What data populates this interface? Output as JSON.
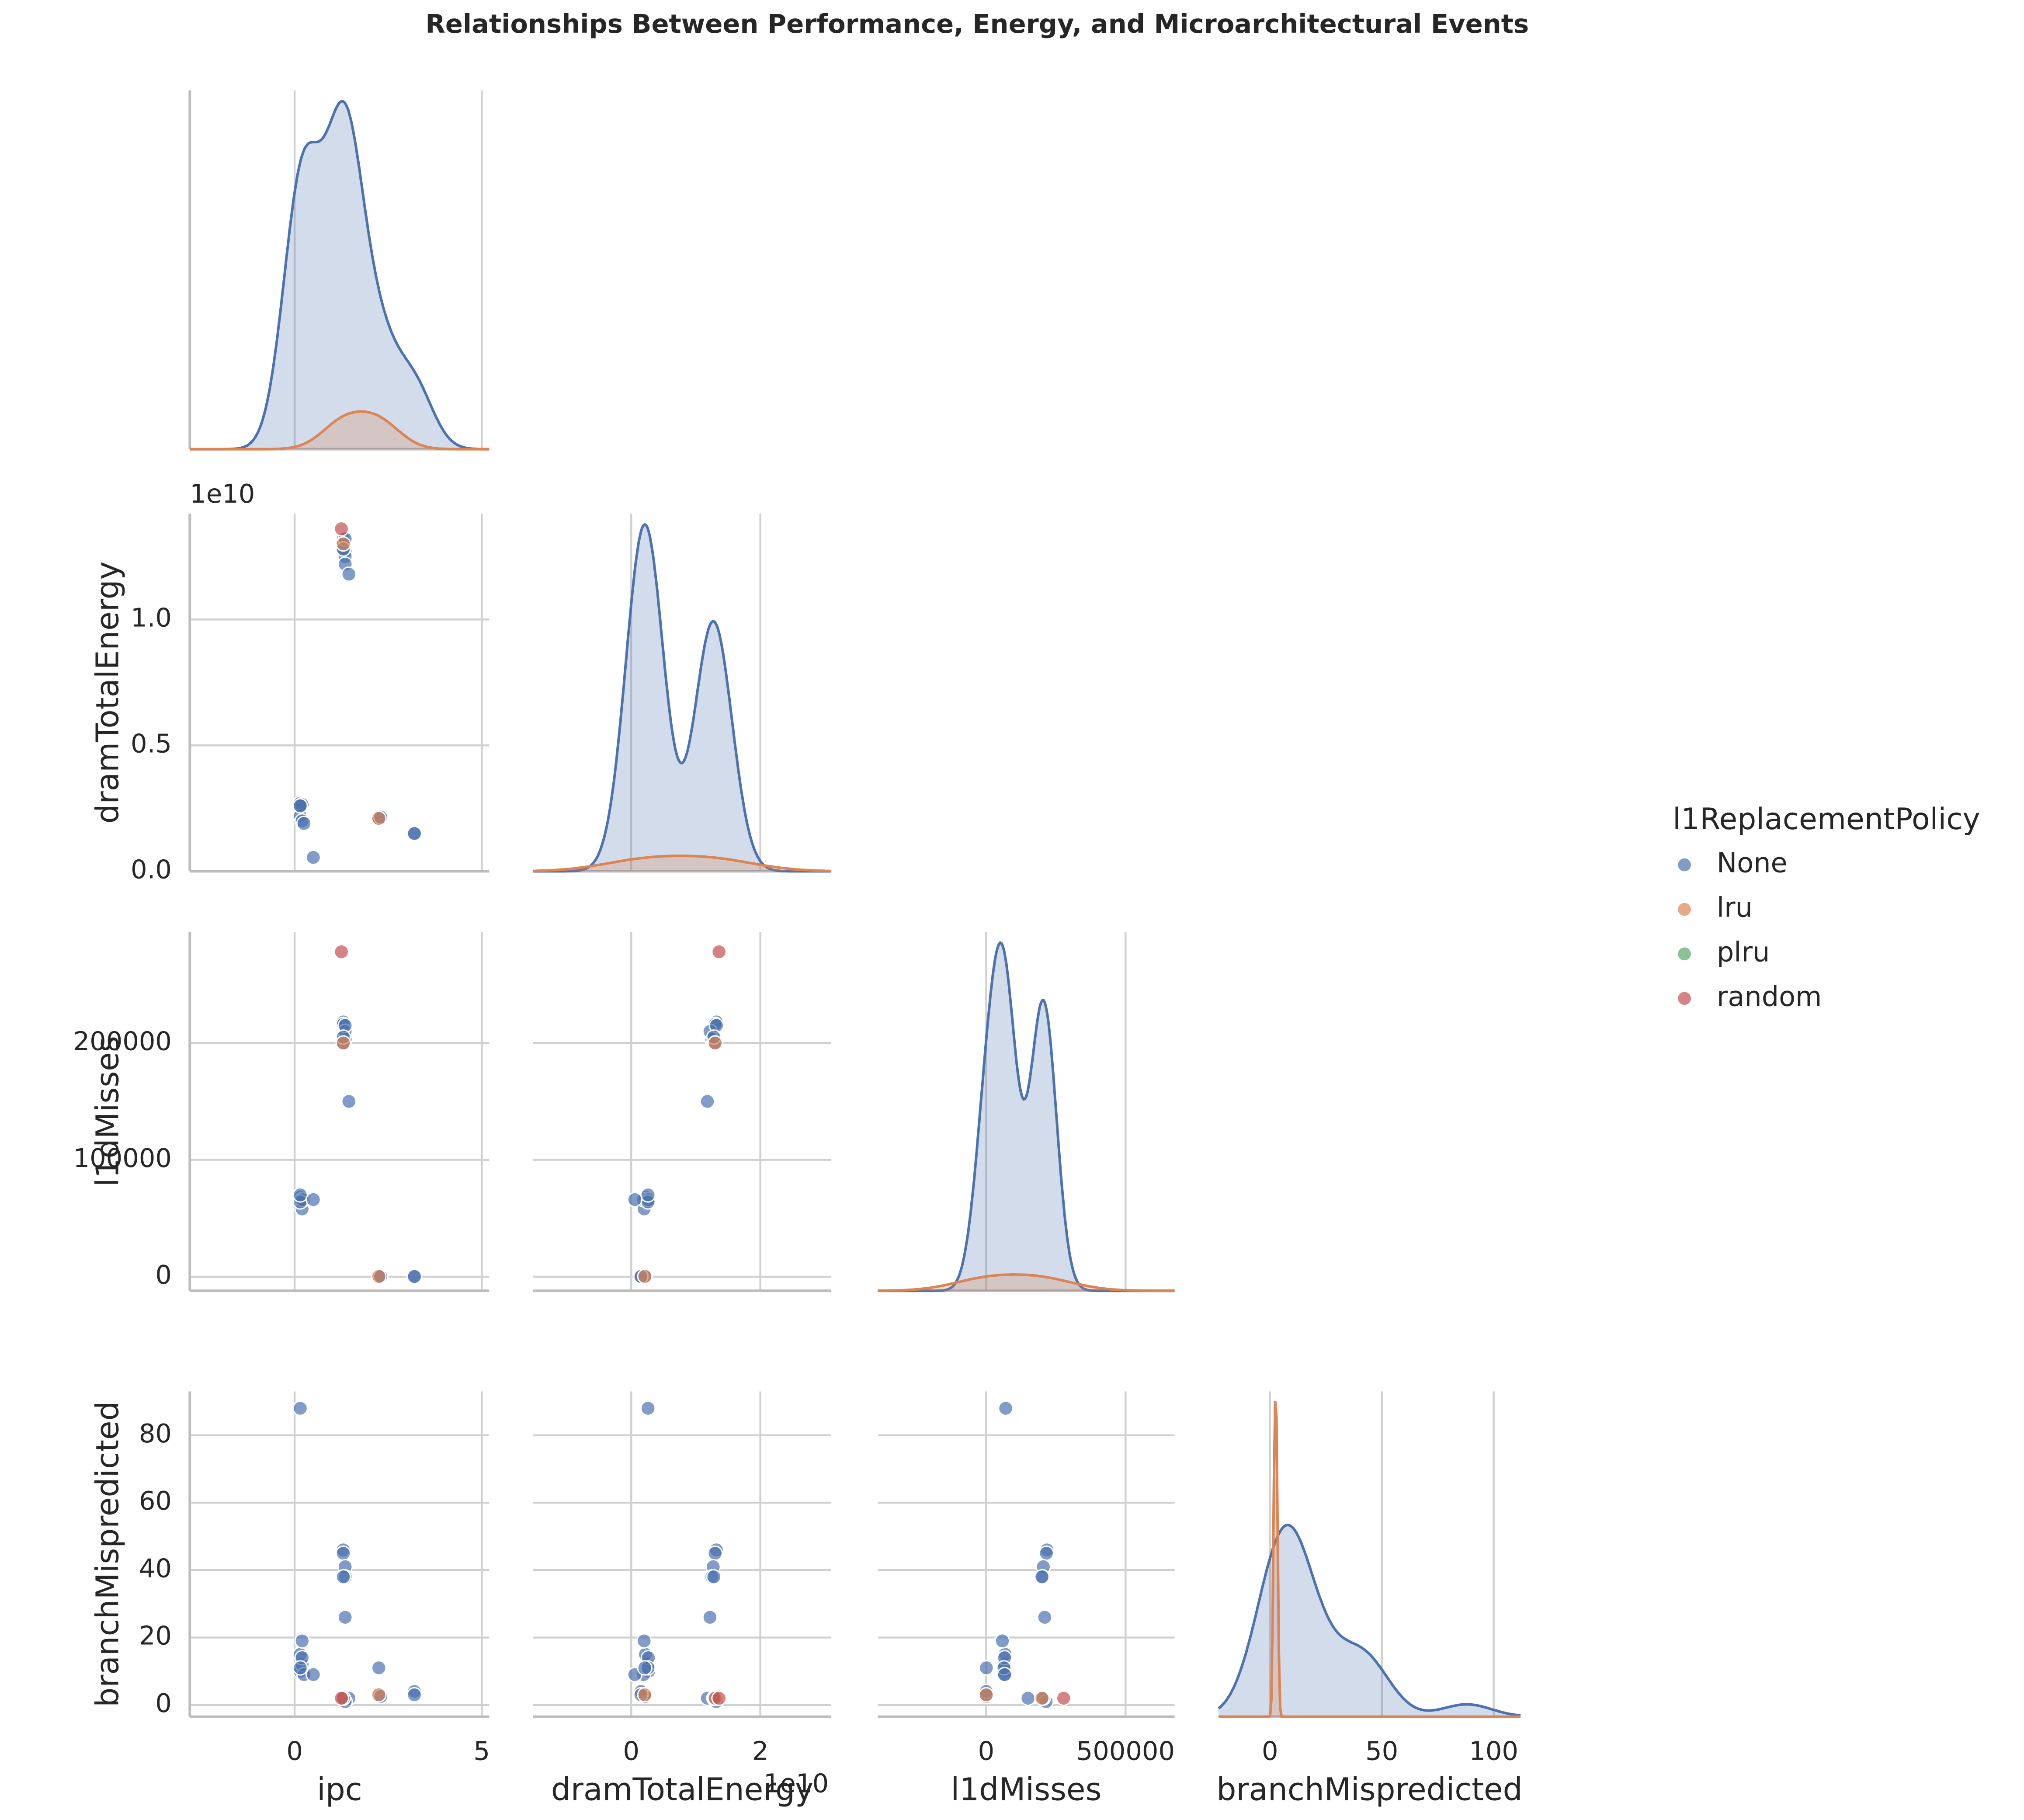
{
  "chart_data": {
    "type": "pairplot",
    "title": "Relationships Between Performance, Energy, and Microarchitectural Events",
    "legend_title": "l1ReplacementPolicy",
    "grid": true,
    "variables": [
      {
        "name": "ipc",
        "xlim": [
          -2.8,
          5.2
        ],
        "xticks": [
          0,
          5
        ]
      },
      {
        "name": "dramTotalEnergy",
        "offset_label": "1e10",
        "xlim": [
          -15200000000,
          31000000000
        ],
        "xticks": [
          0,
          {
            "value": 20000000000,
            "label": "2"
          }
        ],
        "ylim": [
          0,
          14200000000
        ],
        "yticks": [
          {
            "value": 0,
            "label": "0.0"
          },
          {
            "value": 5000000000,
            "label": "0.5"
          },
          {
            "value": 10000000000,
            "label": "1.0"
          }
        ]
      },
      {
        "name": "l1dMisses",
        "xlim": [
          -389000,
          676000
        ],
        "xticks": [
          0,
          500000
        ],
        "ylim": [
          -12000,
          295000
        ],
        "yticks": [
          0,
          100000,
          200000
        ]
      },
      {
        "name": "branchMispredicted",
        "xlim": [
          -23,
          112
        ],
        "xticks": [
          0,
          50,
          100
        ],
        "ylim": [
          -3.5,
          93
        ],
        "yticks": [
          0,
          20,
          40,
          60,
          80
        ]
      }
    ],
    "series": [
      {
        "name": "None",
        "color": "#4c72b0",
        "points": [
          [
            0.15,
            2700000000,
            66000,
            10
          ],
          [
            0.2,
            2600000000,
            65000,
            12
          ],
          [
            0.15,
            2200000000,
            68000,
            15
          ],
          [
            0.2,
            2000000000,
            58000,
            19
          ],
          [
            0.25,
            1900000000,
            66000,
            9
          ],
          [
            0.2,
            2650000000,
            66000,
            14
          ],
          [
            0.15,
            2600000000,
            64000,
            11
          ],
          [
            0.15,
            2600000000,
            70000,
            88
          ],
          [
            0.5,
            550000000,
            66000,
            9
          ],
          [
            2.25,
            2100000000,
            500,
            11
          ],
          [
            2.25,
            2100000000,
            300,
            3
          ],
          [
            2.3,
            2150000000,
            200,
            2.5
          ],
          [
            3.2,
            1500000000,
            300,
            4
          ],
          [
            3.2,
            1500000000,
            200,
            3
          ],
          [
            1.3,
            13200000000,
            218000,
            46
          ],
          [
            1.3,
            13000000000,
            216000,
            45
          ],
          [
            1.35,
            12700000000,
            205000,
            41
          ],
          [
            1.35,
            12500000000,
            203000,
            38
          ],
          [
            1.3,
            12800000000,
            200000,
            38
          ],
          [
            1.35,
            12200000000,
            210000,
            26
          ],
          [
            1.45,
            11800000000,
            150000,
            2
          ],
          [
            1.3,
            13000000000,
            200000,
            2
          ],
          [
            1.35,
            13200000000,
            215000,
            1
          ],
          [
            1.3,
            12800000000,
            205000,
            2
          ]
        ]
      },
      {
        "name": "lru",
        "color": "#dd8452",
        "points": [
          [
            1.3,
            13000000000,
            200000,
            2
          ],
          [
            2.25,
            2100000000,
            300,
            3
          ]
        ]
      },
      {
        "name": "plru",
        "color": "#55a868",
        "points": []
      },
      {
        "name": "random",
        "color": "#c44e52",
        "points": [
          [
            1.25,
            13600000000,
            278000,
            2
          ]
        ]
      }
    ]
  }
}
